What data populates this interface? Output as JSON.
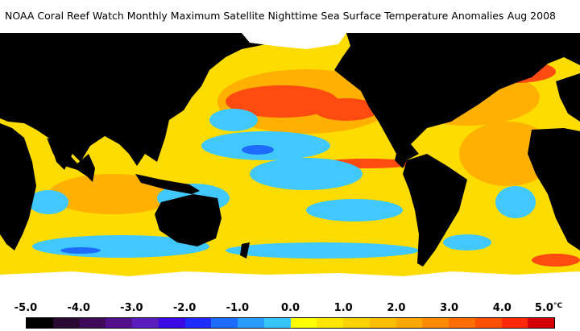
{
  "title": {
    "text": "NOAA Coral Reef Watch Monthly Maximum Satellite Nighttime Sea Surface Temperature Anomalies",
    "date": "Aug 2008"
  },
  "colorbar": {
    "unit": "°C",
    "tick_labels": [
      "-5.0",
      "-4.0",
      "-3.0",
      "-2.0",
      "-1.0",
      "0.0",
      "1.0",
      "2.0",
      "3.0",
      "4.0",
      "5.0"
    ],
    "swatches": [
      "#000000",
      "#2a0a32",
      "#3e0a5a",
      "#52108c",
      "#5a1ebe",
      "#3a0ae6",
      "#1e2cff",
      "#1e6cff",
      "#2a9cff",
      "#38c4ff",
      "#ffff00",
      "#ffe600",
      "#ffd200",
      "#ffbe00",
      "#ffa800",
      "#ff8c00",
      "#ff6e00",
      "#ff5000",
      "#ff2800",
      "#d20000"
    ]
  },
  "map_colors": {
    "land": "#000000",
    "ice": "#ffffff",
    "warm": "#ffe400",
    "hot": "#ff4a10",
    "cool": "#40c8ff"
  }
}
